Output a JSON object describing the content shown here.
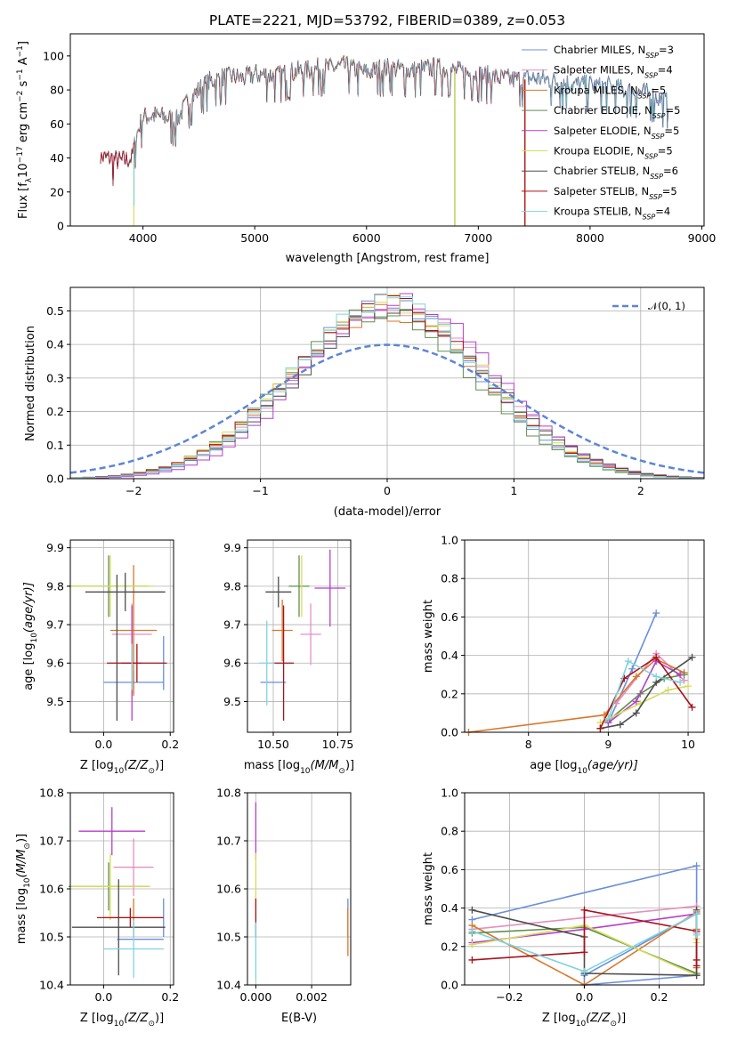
{
  "figure_title": "PLATE=2221, MJD=53792, FIBERID=0389, z=0.053",
  "models": [
    {
      "name": "Chabrier MILES",
      "nssp": "3",
      "color": "#6a8fdc"
    },
    {
      "name": "Salpeter MILES",
      "nssp": "4",
      "color": "#e58fc0"
    },
    {
      "name": "Kroupa MILES",
      "nssp": "5",
      "color": "#d9772a"
    },
    {
      "name": "Chabrier ELODIE",
      "nssp": "5",
      "color": "#5f8f4e"
    },
    {
      "name": "Salpeter ELODIE",
      "nssp": "5",
      "color": "#b53fc9"
    },
    {
      "name": "Kroupa ELODIE",
      "nssp": "5",
      "color": "#d6dc5a"
    },
    {
      "name": "Chabrier STELIB",
      "nssp": "6",
      "color": "#4d4d4d"
    },
    {
      "name": "Salpeter STELIB",
      "nssp": "5",
      "color": "#a8121b"
    },
    {
      "name": "Kroupa STELIB",
      "nssp": "4",
      "color": "#7fd3dd"
    }
  ],
  "chart_data": [
    {
      "id": "spectrum",
      "type": "line",
      "xlabel": "wavelength [Angstrom, rest frame]",
      "ylabel_parts": [
        "Flux [f",
        "λ",
        "10",
        "−17",
        " erg cm",
        "−2",
        " s",
        "−1",
        " A",
        "−1",
        "]"
      ],
      "xlim": [
        3350,
        9020
      ],
      "ylim": [
        0,
        113
      ],
      "xticks": [
        4000,
        5000,
        6000,
        7000,
        8000,
        9000
      ],
      "yticks": [
        0,
        20,
        40,
        60,
        80,
        100
      ],
      "legend_position": "top-right",
      "legend_prefix": "N",
      "legend_sub": "SSP",
      "legend_eq": "=",
      "anchors": [
        [
          3620,
          40
        ],
        [
          3700,
          40
        ],
        [
          3800,
          38
        ],
        [
          3900,
          40
        ],
        [
          3950,
          55
        ],
        [
          4000,
          64
        ],
        [
          4100,
          65
        ],
        [
          4200,
          64
        ],
        [
          4300,
          62
        ],
        [
          4400,
          73
        ],
        [
          4500,
          80
        ],
        [
          4600,
          85
        ],
        [
          4700,
          87
        ],
        [
          4800,
          88
        ],
        [
          4900,
          87
        ],
        [
          5000,
          89
        ],
        [
          5100,
          89
        ],
        [
          5200,
          88
        ],
        [
          5300,
          90
        ],
        [
          5400,
          91
        ],
        [
          5500,
          92
        ],
        [
          5600,
          93
        ],
        [
          5700,
          93
        ],
        [
          5800,
          94
        ],
        [
          5900,
          92
        ],
        [
          6000,
          90
        ],
        [
          6100,
          92
        ],
        [
          6200,
          93
        ],
        [
          6300,
          92
        ],
        [
          6400,
          91
        ],
        [
          6500,
          92
        ],
        [
          6600,
          93
        ],
        [
          6700,
          92
        ],
        [
          6800,
          91
        ],
        [
          6900,
          90
        ],
        [
          7000,
          89
        ],
        [
          7100,
          88
        ],
        [
          7200,
          87
        ],
        [
          7300,
          86
        ],
        [
          7400,
          86
        ],
        [
          7500,
          87
        ],
        [
          7600,
          86
        ],
        [
          7700,
          85
        ],
        [
          7800,
          84
        ],
        [
          7900,
          83
        ],
        [
          8000,
          83
        ],
        [
          8100,
          82
        ],
        [
          8200,
          82
        ],
        [
          8300,
          80
        ],
        [
          8400,
          79
        ],
        [
          8500,
          78
        ],
        [
          8600,
          76
        ],
        [
          8700,
          72
        ]
      ],
      "drops": [
        {
          "model": 5,
          "x": 3918,
          "to": 0
        },
        {
          "model": 8,
          "x": 3920,
          "to": 12
        },
        {
          "model": 3,
          "x": 6790,
          "to": 0
        },
        {
          "model": 5,
          "x": 6792,
          "to": 0
        },
        {
          "model": 2,
          "x": 7415,
          "to": 0
        },
        {
          "model": 7,
          "x": 7418,
          "to": 0
        }
      ],
      "ranges": [
        [
          3620,
          8700
        ],
        [
          3620,
          8700
        ],
        [
          3620,
          7415
        ],
        [
          3620,
          6790
        ],
        [
          3620,
          8700
        ],
        [
          3918,
          6792
        ],
        [
          3620,
          8700
        ],
        [
          3620,
          7418
        ],
        [
          3920,
          8700
        ]
      ]
    },
    {
      "id": "residuals",
      "type": "step-histogram",
      "xlabel": "(data-model)/error",
      "ylabel": "Normed distribution",
      "xlim": [
        -2.5,
        2.5
      ],
      "ylim": [
        0,
        0.57
      ],
      "xticks": [
        -2,
        -1,
        0,
        1,
        2
      ],
      "yticks": [
        0.0,
        0.1,
        0.2,
        0.3,
        0.4,
        0.5
      ],
      "bin_width": 0.1,
      "peaks": [
        0.52,
        0.51,
        0.5,
        0.5,
        0.54,
        0.53,
        0.5,
        0.52,
        0.53
      ],
      "centers": [
        0.0,
        0.05,
        0.0,
        -0.05,
        0.1,
        0.0,
        0.05,
        0.0,
        0.0
      ],
      "widths": [
        0.72,
        0.76,
        0.76,
        0.74,
        0.72,
        0.75,
        0.76,
        0.75,
        0.73
      ],
      "normal_label": "𝒩(0, 1)",
      "normal_color": "#5b86d6",
      "legend_position": "top-right"
    },
    {
      "id": "age-vs-Z",
      "type": "errorbar",
      "xlabel_parts": [
        "Z [log",
        "10",
        "(Z/Z",
        "⊙",
        ")]"
      ],
      "ylabel_parts": [
        "age  [log",
        "10",
        "(age/yr)]"
      ],
      "xlim": [
        -0.1,
        0.21
      ],
      "ylim": [
        9.42,
        9.92
      ],
      "xticks": [
        0.0,
        0.2
      ],
      "yticks": [
        9.5,
        9.6,
        9.7,
        9.8,
        9.9
      ],
      "points": [
        {
          "model": 0,
          "x": 0.09,
          "y": 9.55,
          "xerr": 0.09,
          "yerr": 0.03
        },
        {
          "model": 0,
          "x": 0.18,
          "y": 9.6,
          "xerr": 0.0,
          "yerr": 0.07
        },
        {
          "model": 1,
          "x": 0.085,
          "y": 9.675,
          "xerr": 0.06,
          "yerr": 0.08
        },
        {
          "model": 2,
          "x": 0.09,
          "y": 9.685,
          "xerr": 0.07,
          "yerr": 0.17
        },
        {
          "model": 3,
          "x": 0.015,
          "y": 9.8,
          "xerr": 0.12,
          "yerr": 0.08
        },
        {
          "model": 4,
          "x": 0.085,
          "y": 9.6,
          "xerr": 0.03,
          "yerr": 0.15
        },
        {
          "model": 5,
          "x": 0.02,
          "y": 9.8,
          "xerr": 0.13,
          "yerr": 0.08
        },
        {
          "model": 6,
          "x": 0.065,
          "y": 9.785,
          "xerr": 0.12,
          "yerr": 0.05
        },
        {
          "model": 6,
          "x": 0.04,
          "y": 9.64,
          "xerr": 0.0,
          "yerr": 0.19
        },
        {
          "model": 7,
          "x": 0.1,
          "y": 9.6,
          "xerr": 0.09,
          "yerr": 0.05
        },
        {
          "model": 8,
          "x": 0.085,
          "y": 9.59,
          "xerr": 0.0,
          "yerr": 0.06
        }
      ]
    },
    {
      "id": "age-vs-mass",
      "type": "errorbar",
      "xlabel_parts": [
        "mass [log",
        "10",
        "(M/M",
        "⊙",
        ")]"
      ],
      "ylabel_parts": [],
      "xlim": [
        10.4,
        10.8
      ],
      "ylim": [
        9.42,
        9.92
      ],
      "xticks": [
        10.5,
        10.75
      ],
      "yticks": [
        9.5,
        9.6,
        9.7,
        9.8,
        9.9
      ],
      "points": [
        {
          "model": 0,
          "x": 10.5,
          "y": 9.55,
          "xerr": 0.05,
          "yerr": 0.0
        },
        {
          "model": 1,
          "x": 10.645,
          "y": 9.675,
          "xerr": 0.04,
          "yerr": 0.08
        },
        {
          "model": 2,
          "x": 10.535,
          "y": 9.685,
          "xerr": 0.04,
          "yerr": 0.08
        },
        {
          "model": 3,
          "x": 10.6,
          "y": 9.8,
          "xerr": 0.04,
          "yerr": 0.08
        },
        {
          "model": 4,
          "x": 10.72,
          "y": 9.795,
          "xerr": 0.06,
          "yerr": 0.1
        },
        {
          "model": 5,
          "x": 10.61,
          "y": 9.8,
          "xerr": 0.0,
          "yerr": 0.08
        },
        {
          "model": 6,
          "x": 10.52,
          "y": 9.785,
          "xerr": 0.05,
          "yerr": 0.04
        },
        {
          "model": 7,
          "x": 10.54,
          "y": 9.6,
          "xerr": 0.04,
          "yerr": 0.15
        },
        {
          "model": 8,
          "x": 10.475,
          "y": 9.6,
          "xerr": 0.03,
          "yerr": 0.11
        }
      ]
    },
    {
      "id": "weight-vs-age",
      "type": "line-markers",
      "xlabel_parts": [
        "age  [log",
        "10",
        "(age/yr)]"
      ],
      "ylabel": "mass weight",
      "xlim": [
        7.2,
        10.2
      ],
      "ylim": [
        0,
        1.0
      ],
      "xticks": [
        8,
        9,
        10
      ],
      "yticks": [
        0.0,
        0.2,
        0.4,
        0.6,
        0.8,
        1.0
      ],
      "series": [
        {
          "model": 0,
          "x": [
            9.0,
            9.3,
            9.6
          ],
          "y": [
            0.05,
            0.33,
            0.62
          ]
        },
        {
          "model": 1,
          "x": [
            9.1,
            9.6,
            9.95
          ],
          "y": [
            0.15,
            0.41,
            0.27
          ]
        },
        {
          "model": 2,
          "x": [
            7.25,
            8.95,
            9.35,
            9.6,
            9.95
          ],
          "y": [
            0.0,
            0.09,
            0.29,
            0.38,
            0.31
          ]
        },
        {
          "model": 3,
          "x": [
            9.0,
            9.4,
            9.7,
            9.95
          ],
          "y": [
            0.06,
            0.2,
            0.28,
            0.3
          ]
        },
        {
          "model": 4,
          "x": [
            9.0,
            9.35,
            9.6,
            9.9
          ],
          "y": [
            0.05,
            0.16,
            0.37,
            0.3
          ]
        },
        {
          "model": 5,
          "x": [
            8.9,
            9.4,
            9.75,
            10.0
          ],
          "y": [
            0.05,
            0.15,
            0.22,
            0.24
          ]
        },
        {
          "model": 6,
          "x": [
            8.9,
            9.15,
            9.35,
            9.6,
            10.05
          ],
          "y": [
            0.02,
            0.04,
            0.1,
            0.26,
            0.39
          ]
        },
        {
          "model": 7,
          "x": [
            8.9,
            9.2,
            9.6,
            10.05
          ],
          "y": [
            0.02,
            0.28,
            0.39,
            0.13
          ]
        },
        {
          "model": 8,
          "x": [
            9.0,
            9.25,
            9.6,
            9.9
          ],
          "y": [
            0.07,
            0.37,
            0.29,
            0.26
          ]
        }
      ]
    },
    {
      "id": "mass-vs-Z",
      "type": "errorbar",
      "xlabel_parts": [
        "Z [log",
        "10",
        "(Z/Z",
        "⊙",
        ")]"
      ],
      "ylabel_parts": [
        "mass [log",
        "10",
        "(M/M",
        "⊙",
        ")]"
      ],
      "xlim": [
        -0.1,
        0.21
      ],
      "ylim": [
        10.4,
        10.8
      ],
      "xticks": [
        0.0,
        0.2
      ],
      "yticks": [
        10.4,
        10.5,
        10.6,
        10.7,
        10.8
      ],
      "points": [
        {
          "model": 0,
          "x": 0.11,
          "y": 10.495,
          "xerr": 0.07,
          "yerr": 0.0
        },
        {
          "model": 0,
          "x": 0.18,
          "y": 10.54,
          "xerr": 0.0,
          "yerr": 0.04
        },
        {
          "model": 1,
          "x": 0.09,
          "y": 10.645,
          "xerr": 0.06,
          "yerr": 0.06
        },
        {
          "model": 2,
          "x": 0.09,
          "y": 10.54,
          "xerr": 0.09,
          "yerr": 0.04
        },
        {
          "model": 3,
          "x": 0.015,
          "y": 10.605,
          "xerr": 0.12,
          "yerr": 0.05
        },
        {
          "model": 4,
          "x": 0.025,
          "y": 10.72,
          "xerr": 0.1,
          "yerr": 0.05
        },
        {
          "model": 5,
          "x": 0.02,
          "y": 10.605,
          "xerr": 0.12,
          "yerr": 0.07
        },
        {
          "model": 6,
          "x": 0.045,
          "y": 10.52,
          "xerr": 0.14,
          "yerr": 0.1
        },
        {
          "model": 7,
          "x": 0.08,
          "y": 10.54,
          "xerr": 0.1,
          "yerr": 0.02
        },
        {
          "model": 8,
          "x": 0.09,
          "y": 10.475,
          "xerr": 0.09,
          "yerr": 0.06
        }
      ]
    },
    {
      "id": "mass-vs-EBV",
      "type": "errorbar",
      "xlabel": "E(B-V)",
      "ylabel_parts": [],
      "xlim": [
        -0.0003,
        0.0034
      ],
      "ylim": [
        10.4,
        10.8
      ],
      "xticks": [
        0.0,
        0.002
      ],
      "yticks": [
        10.4,
        10.5,
        10.6,
        10.7,
        10.8
      ],
      "points": [
        {
          "model": 0,
          "x": 0.0033,
          "y": 10.54,
          "xerr": 0.0,
          "yerr": 0.04
        },
        {
          "model": 2,
          "x": 0.0033,
          "y": 10.51,
          "xerr": 0.0,
          "yerr": 0.05
        },
        {
          "model": 4,
          "x": 0.0,
          "y": 10.72,
          "xerr": 0.0,
          "yerr": 0.06
        },
        {
          "model": 5,
          "x": 0.0,
          "y": 10.605,
          "xerr": 0.0,
          "yerr": 0.07
        },
        {
          "model": 7,
          "x": 0.0,
          "y": 10.54,
          "xerr": 0.0,
          "yerr": 0.04
        },
        {
          "model": 8,
          "x": 0.0,
          "y": 10.47,
          "xerr": 0.0,
          "yerr": 0.06
        }
      ]
    },
    {
      "id": "weight-vs-Z",
      "type": "line-markers",
      "xlabel_parts": [
        "Z [log",
        "10",
        "(Z/Z",
        "⊙",
        ")]"
      ],
      "ylabel": "mass weight",
      "xlim": [
        -0.32,
        0.32
      ],
      "ylim": [
        0,
        1.0
      ],
      "xticks": [
        -0.2,
        0.0,
        0.2
      ],
      "yticks": [
        0.0,
        0.2,
        0.4,
        0.6,
        0.8,
        1.0
      ],
      "series": [
        {
          "model": 0,
          "x": [
            -0.3,
            0.3,
            0.3,
            0.0,
            0.0,
            0.3
          ],
          "y": [
            0.34,
            0.62,
            0.37,
            0.05,
            0.0,
            0.05
          ]
        },
        {
          "model": 1,
          "x": [
            -0.3,
            0.3,
            0.3
          ],
          "y": [
            0.29,
            0.41,
            0.27
          ]
        },
        {
          "model": 2,
          "x": [
            -0.3,
            0.0,
            0.3,
            0.3,
            0.3
          ],
          "y": [
            0.31,
            0.0,
            0.38,
            0.29,
            0.09
          ]
        },
        {
          "model": 3,
          "x": [
            -0.3,
            0.0,
            0.3,
            0.3
          ],
          "y": [
            0.27,
            0.3,
            0.06,
            0.28
          ]
        },
        {
          "model": 4,
          "x": [
            -0.3,
            0.0,
            0.3,
            0.3
          ],
          "y": [
            0.22,
            0.29,
            0.37,
            0.05
          ]
        },
        {
          "model": 5,
          "x": [
            -0.3,
            0.0,
            0.3,
            0.3,
            0.3
          ],
          "y": [
            0.21,
            0.31,
            0.05,
            0.22,
            0.24
          ]
        },
        {
          "model": 6,
          "x": [
            -0.3,
            0.0,
            0.0,
            0.3,
            0.3
          ],
          "y": [
            0.39,
            0.25,
            0.06,
            0.05,
            0.39
          ]
        },
        {
          "model": 7,
          "x": [
            -0.3,
            0.0,
            0.0,
            0.3,
            0.3,
            0.3
          ],
          "y": [
            0.13,
            0.17,
            0.39,
            0.28,
            0.13,
            0.1
          ]
        },
        {
          "model": 8,
          "x": [
            -0.3,
            0.0,
            0.3,
            0.3
          ],
          "y": [
            0.28,
            0.07,
            0.37,
            0.26
          ]
        }
      ]
    }
  ]
}
